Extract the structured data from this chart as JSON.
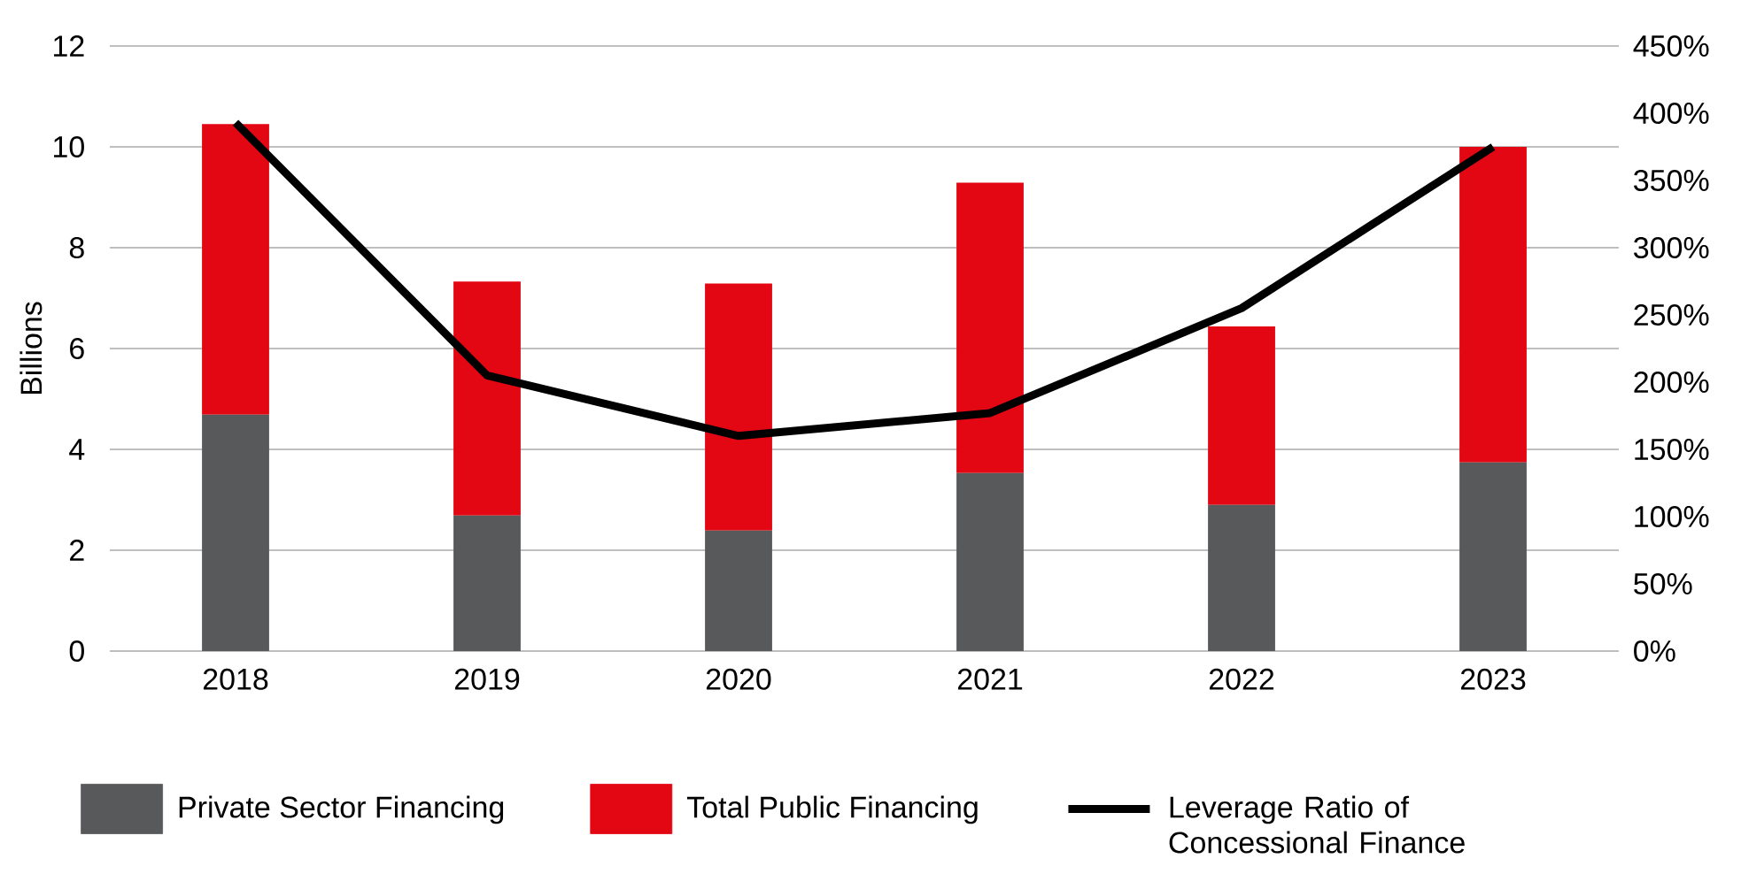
{
  "chart_data": {
    "type": "bar",
    "stacked": true,
    "ylabel": "Billions",
    "categories": [
      "2018",
      "2019",
      "2020",
      "2021",
      "2022",
      "2023"
    ],
    "series": [
      {
        "name": "Private Sector Financing",
        "color": "#58595b",
        "values": [
          4.69,
          2.69,
          2.39,
          3.53,
          2.9,
          3.74
        ]
      },
      {
        "name": "Total Public Financing",
        "color": "#e30613",
        "values": [
          5.76,
          4.64,
          4.9,
          5.76,
          3.54,
          6.26
        ]
      },
      {
        "name": "Leverage Ratio of Concessional Finance",
        "type": "line",
        "axis": "y2",
        "color": "#000000",
        "values": [
          393,
          205,
          160,
          177,
          255,
          375
        ]
      }
    ],
    "ylim": [
      0,
      12
    ],
    "yticks": [
      0,
      2,
      4,
      6,
      8,
      10,
      12
    ],
    "y2lim": [
      0,
      450
    ],
    "y2ticks": [
      {
        "value": 0,
        "label": "0%"
      },
      {
        "value": 50,
        "label": "50%"
      },
      {
        "value": 100,
        "label": "100%"
      },
      {
        "value": 150,
        "label": "150%"
      },
      {
        "value": 200,
        "label": "200%"
      },
      {
        "value": 250,
        "label": "250%"
      },
      {
        "value": 300,
        "label": "300%"
      },
      {
        "value": 350,
        "label": "350%"
      },
      {
        "value": 400,
        "label": "400%"
      },
      {
        "value": 450,
        "label": "450%"
      }
    ],
    "grid": "y",
    "legend": "bottom"
  }
}
